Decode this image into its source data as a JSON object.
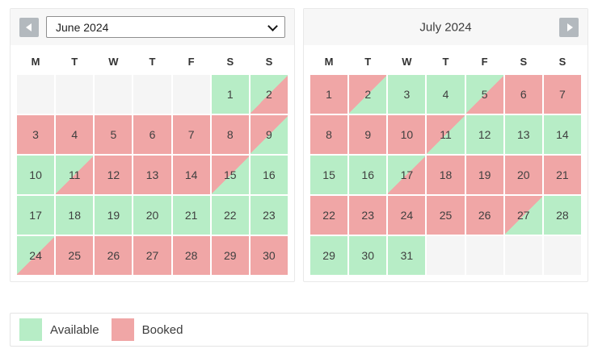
{
  "colors": {
    "available": "#b7edc6",
    "booked": "#f0a6a6",
    "empty_cell": "#f5f5f5",
    "panel_header_bg": "#f7f7f7",
    "nav_button_bg": "#b3b9be",
    "panel_border": "#e9e9e9",
    "text": "#3c3c3c"
  },
  "left_calendar": {
    "selected_month": "June 2024",
    "weekdays": [
      "M",
      "T",
      "W",
      "T",
      "F",
      "S",
      "S"
    ],
    "weeks": [
      [
        {
          "day": "",
          "state": "empty"
        },
        {
          "day": "",
          "state": "empty"
        },
        {
          "day": "",
          "state": "empty"
        },
        {
          "day": "",
          "state": "empty"
        },
        {
          "day": "",
          "state": "empty"
        },
        {
          "day": "1",
          "state": "available"
        },
        {
          "day": "2",
          "state": "available-booked"
        }
      ],
      [
        {
          "day": "3",
          "state": "booked"
        },
        {
          "day": "4",
          "state": "booked"
        },
        {
          "day": "5",
          "state": "booked"
        },
        {
          "day": "6",
          "state": "booked"
        },
        {
          "day": "7",
          "state": "booked"
        },
        {
          "day": "8",
          "state": "booked"
        },
        {
          "day": "9",
          "state": "booked-available"
        }
      ],
      [
        {
          "day": "10",
          "state": "available"
        },
        {
          "day": "11",
          "state": "available-booked"
        },
        {
          "day": "12",
          "state": "booked"
        },
        {
          "day": "13",
          "state": "booked"
        },
        {
          "day": "14",
          "state": "booked"
        },
        {
          "day": "15",
          "state": "booked-available"
        },
        {
          "day": "16",
          "state": "available"
        }
      ],
      [
        {
          "day": "17",
          "state": "available"
        },
        {
          "day": "18",
          "state": "available"
        },
        {
          "day": "19",
          "state": "available"
        },
        {
          "day": "20",
          "state": "available"
        },
        {
          "day": "21",
          "state": "available"
        },
        {
          "day": "22",
          "state": "available"
        },
        {
          "day": "23",
          "state": "available"
        }
      ],
      [
        {
          "day": "24",
          "state": "available-booked"
        },
        {
          "day": "25",
          "state": "booked"
        },
        {
          "day": "26",
          "state": "booked"
        },
        {
          "day": "27",
          "state": "booked"
        },
        {
          "day": "28",
          "state": "booked"
        },
        {
          "day": "29",
          "state": "booked"
        },
        {
          "day": "30",
          "state": "booked"
        }
      ]
    ]
  },
  "right_calendar": {
    "title": "July 2024",
    "weekdays": [
      "M",
      "T",
      "W",
      "T",
      "F",
      "S",
      "S"
    ],
    "weeks": [
      [
        {
          "day": "1",
          "state": "booked"
        },
        {
          "day": "2",
          "state": "booked-available"
        },
        {
          "day": "3",
          "state": "available"
        },
        {
          "day": "4",
          "state": "available"
        },
        {
          "day": "5",
          "state": "available-booked"
        },
        {
          "day": "6",
          "state": "booked"
        },
        {
          "day": "7",
          "state": "booked"
        }
      ],
      [
        {
          "day": "8",
          "state": "booked"
        },
        {
          "day": "9",
          "state": "booked"
        },
        {
          "day": "10",
          "state": "booked"
        },
        {
          "day": "11",
          "state": "booked-available"
        },
        {
          "day": "12",
          "state": "available"
        },
        {
          "day": "13",
          "state": "available"
        },
        {
          "day": "14",
          "state": "available"
        }
      ],
      [
        {
          "day": "15",
          "state": "available"
        },
        {
          "day": "16",
          "state": "available"
        },
        {
          "day": "17",
          "state": "available-booked"
        },
        {
          "day": "18",
          "state": "booked"
        },
        {
          "day": "19",
          "state": "booked"
        },
        {
          "day": "20",
          "state": "booked"
        },
        {
          "day": "21",
          "state": "booked"
        }
      ],
      [
        {
          "day": "22",
          "state": "booked"
        },
        {
          "day": "23",
          "state": "booked"
        },
        {
          "day": "24",
          "state": "booked"
        },
        {
          "day": "25",
          "state": "booked"
        },
        {
          "day": "26",
          "state": "booked"
        },
        {
          "day": "27",
          "state": "booked-available"
        },
        {
          "day": "28",
          "state": "available"
        }
      ],
      [
        {
          "day": "29",
          "state": "available"
        },
        {
          "day": "30",
          "state": "available"
        },
        {
          "day": "31",
          "state": "available"
        },
        {
          "day": "",
          "state": "empty"
        },
        {
          "day": "",
          "state": "empty"
        },
        {
          "day": "",
          "state": "empty"
        },
        {
          "day": "",
          "state": "empty"
        }
      ]
    ]
  },
  "legend": {
    "available_label": "Available",
    "booked_label": "Booked"
  }
}
